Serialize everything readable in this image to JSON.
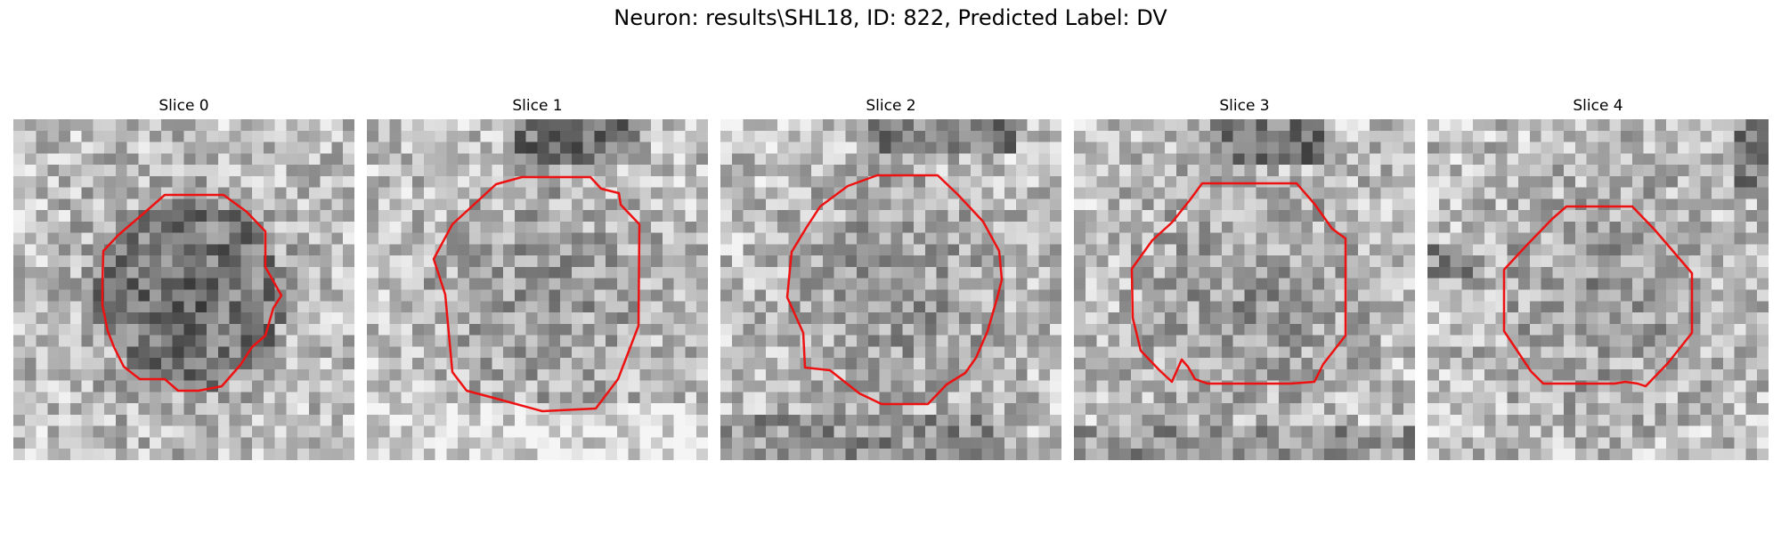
{
  "figure": {
    "title": "Neuron: results\\SHL18, ID: 822, Predicted Label: DV"
  },
  "panels": [
    {
      "title": "Slice 0",
      "image": "noisy-grayscale-patch",
      "overlay_color": "#ee1111"
    },
    {
      "title": "Slice 1",
      "image": "noisy-grayscale-patch",
      "overlay_color": "#ee1111"
    },
    {
      "title": "Slice 2",
      "image": "noisy-grayscale-patch",
      "overlay_color": "#ee1111"
    },
    {
      "title": "Slice 3",
      "image": "noisy-grayscale-patch",
      "overlay_color": "#ee1111"
    },
    {
      "title": "Slice 4",
      "image": "noisy-grayscale-patch",
      "overlay_color": "#ee1111"
    }
  ]
}
